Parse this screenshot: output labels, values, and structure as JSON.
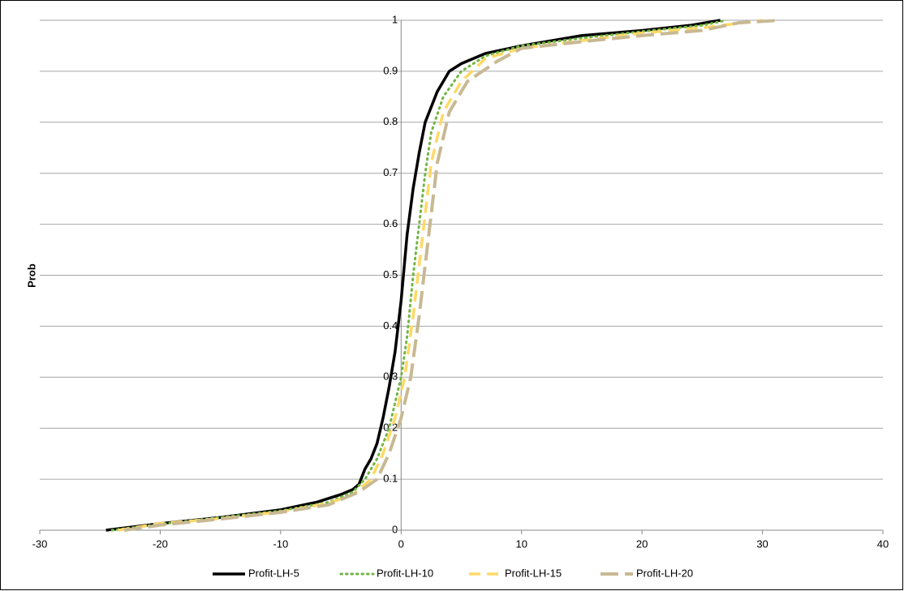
{
  "chart_data": {
    "type": "line",
    "y_label": "Prob",
    "xlim": [
      -30,
      40
    ],
    "xticks": [
      -30,
      -20,
      -10,
      0,
      10,
      20,
      30,
      40
    ],
    "ylim": [
      0,
      1
    ],
    "yticks": [
      0,
      0.1,
      0.2,
      0.3,
      0.4,
      0.5,
      0.6,
      0.7,
      0.8,
      0.9,
      1
    ],
    "grid": true,
    "legend": "bottom",
    "series": [
      {
        "name": "Profit-LH-5",
        "color": "#000000",
        "style": "solid",
        "x": [
          -24.5,
          -20,
          -15,
          -10,
          -7,
          -5,
          -4,
          -3.5,
          -3,
          -2.5,
          -2,
          -1.5,
          -1,
          -0.5,
          0,
          0.5,
          1,
          1.5,
          2,
          3,
          4,
          5,
          7,
          10,
          15,
          20,
          24,
          26.5
        ],
        "values": [
          0,
          0.013,
          0.025,
          0.04,
          0.055,
          0.07,
          0.08,
          0.09,
          0.12,
          0.14,
          0.17,
          0.22,
          0.28,
          0.35,
          0.45,
          0.58,
          0.67,
          0.74,
          0.8,
          0.86,
          0.9,
          0.915,
          0.935,
          0.95,
          0.97,
          0.98,
          0.99,
          1
        ]
      },
      {
        "name": "Profit-LH-10",
        "color": "#70b640",
        "style": "dotted",
        "x": [
          -24,
          -20,
          -15,
          -10,
          -6,
          -4,
          -3,
          -2,
          -1,
          0,
          0.5,
          1,
          1.5,
          2,
          2.5,
          3.5,
          5,
          7,
          10,
          15,
          20,
          25,
          27
        ],
        "values": [
          0,
          0.012,
          0.025,
          0.038,
          0.055,
          0.075,
          0.1,
          0.14,
          0.2,
          0.3,
          0.38,
          0.5,
          0.6,
          0.7,
          0.78,
          0.85,
          0.9,
          0.93,
          0.95,
          0.965,
          0.978,
          0.99,
          1
        ]
      },
      {
        "name": "Profit-LH-15",
        "color": "#ffd966",
        "style": "dashed",
        "x": [
          -23.5,
          -20,
          -15,
          -10,
          -6,
          -4,
          -2.5,
          -1.5,
          -0.5,
          0.3,
          1,
          1.5,
          2,
          2.5,
          3.5,
          5,
          7,
          10,
          15,
          20,
          25,
          30
        ],
        "values": [
          0,
          0.013,
          0.023,
          0.036,
          0.053,
          0.07,
          0.1,
          0.15,
          0.22,
          0.3,
          0.42,
          0.52,
          0.62,
          0.72,
          0.82,
          0.88,
          0.925,
          0.945,
          0.96,
          0.975,
          0.985,
          1
        ]
      },
      {
        "name": "Profit-LH-20",
        "color": "#c8b994",
        "style": "longdash",
        "x": [
          -23,
          -20,
          -15,
          -10,
          -6,
          -3.5,
          -2,
          -1,
          0,
          0.8,
          1.5,
          2,
          2.5,
          3,
          4,
          5.5,
          8,
          10,
          15,
          20,
          25,
          28,
          31.5
        ],
        "values": [
          0,
          0.01,
          0.022,
          0.035,
          0.05,
          0.075,
          0.1,
          0.15,
          0.22,
          0.3,
          0.42,
          0.52,
          0.62,
          0.72,
          0.82,
          0.88,
          0.92,
          0.945,
          0.958,
          0.97,
          0.98,
          0.995,
          1
        ]
      }
    ]
  }
}
